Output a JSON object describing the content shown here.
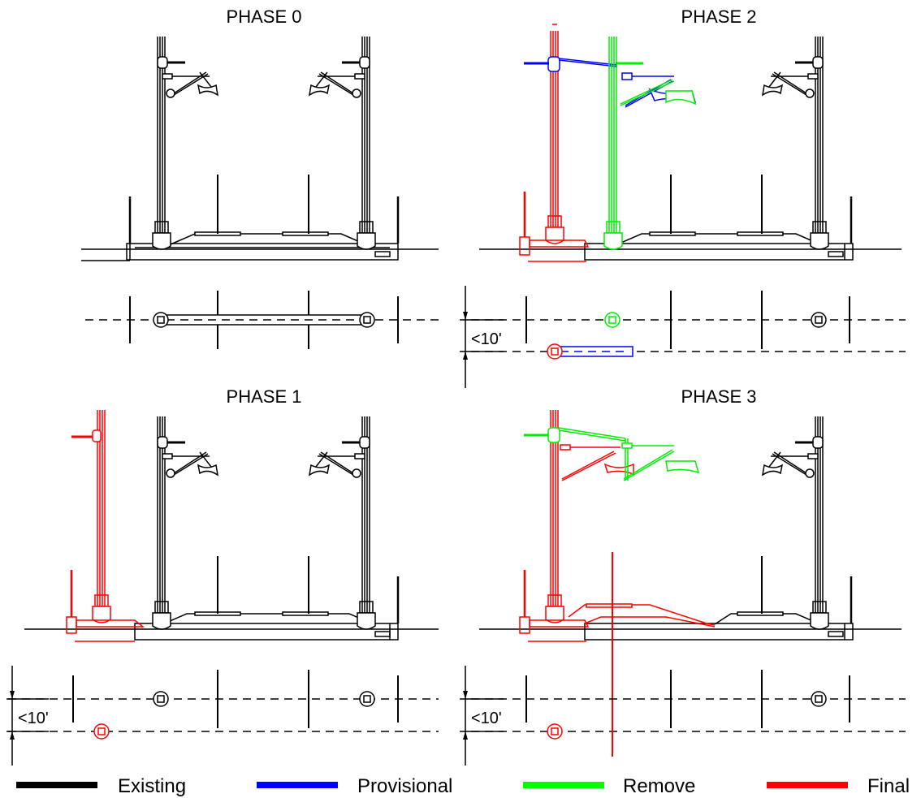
{
  "panels": [
    {
      "key": "p0",
      "title": "PHASE 0"
    },
    {
      "key": "p2",
      "title": "PHASE 2",
      "dimension": "<10'"
    },
    {
      "key": "p1",
      "title": "PHASE 1",
      "dimension": "<10'"
    },
    {
      "key": "p3",
      "title": "PHASE 3",
      "dimension": "<10'"
    }
  ],
  "legend": [
    {
      "label": "Existing",
      "color": "#000000"
    },
    {
      "label": "Provisional",
      "color": "#0000ff"
    },
    {
      "label": "Remove",
      "color": "#00ff00"
    },
    {
      "label": "Final",
      "color": "#ff0000"
    }
  ]
}
